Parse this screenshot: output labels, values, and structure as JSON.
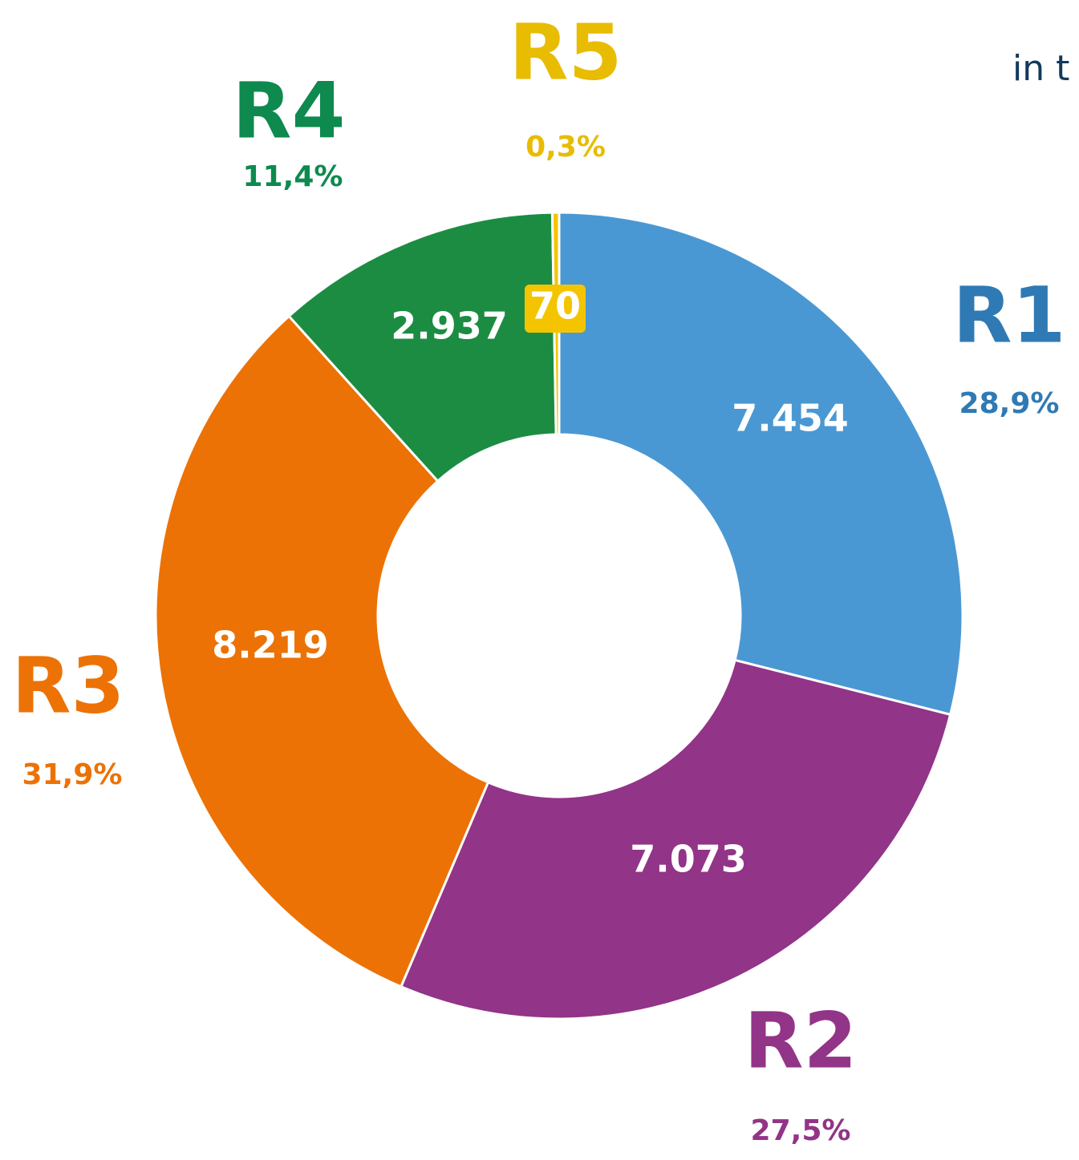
{
  "chart_data": {
    "type": "donut",
    "categories": [
      "R1",
      "R2",
      "R3",
      "R4",
      "R5"
    ],
    "values": [
      7454,
      7073,
      8219,
      2937,
      70
    ],
    "value_labels": [
      "7.454",
      "7.073",
      "8.219",
      "2.937",
      "70"
    ],
    "percent_labels": [
      "28,9%",
      "27,5%",
      "31,9%",
      "11,4%",
      "0,3%"
    ],
    "colors": [
      "#4a98d3",
      "#923487",
      "#ec7205",
      "#1c8c43",
      "#f5c400"
    ],
    "label_colors": [
      "#2f7ab4",
      "#923487",
      "#ec7205",
      "#0e8a4f",
      "#e8bc00"
    ],
    "side_text": "in t"
  }
}
